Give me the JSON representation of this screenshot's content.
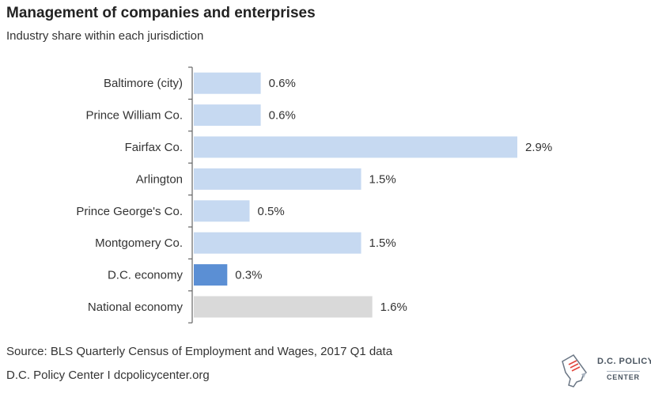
{
  "chart_data": {
    "type": "bar",
    "orientation": "horizontal",
    "title": "Management of companies and enterprises",
    "subtitle": "Industry share within each jurisdiction",
    "categories": [
      "Baltimore (city)",
      "Prince William Co.",
      "Fairfax Co.",
      "Arlington",
      "Prince George's Co.",
      "Montgomery Co.",
      "D.C. economy",
      "National economy"
    ],
    "values": [
      0.6,
      0.6,
      2.9,
      1.5,
      0.5,
      1.5,
      0.3,
      1.6
    ],
    "labels": [
      "0.6%",
      "0.6%",
      "2.9%",
      "1.5%",
      "0.5%",
      "1.5%",
      "0.3%",
      "1.6%"
    ],
    "bar_colors": [
      "#c6d9f1",
      "#c6d9f1",
      "#c6d9f1",
      "#c6d9f1",
      "#c6d9f1",
      "#c6d9f1",
      "#5b8fd4",
      "#d9d9d9"
    ],
    "xlim": [
      0,
      2.9
    ],
    "grid": false,
    "xlabel": "",
    "ylabel": ""
  },
  "footer": {
    "source": "Source: BLS Quarterly Census of Employment and Wages, 2017 Q1 data",
    "credit": "D.C. Policy Center  I  dcpolicycenter.org"
  },
  "logo": {
    "line1": "D.C. POLICY",
    "line2": "CENTER"
  }
}
